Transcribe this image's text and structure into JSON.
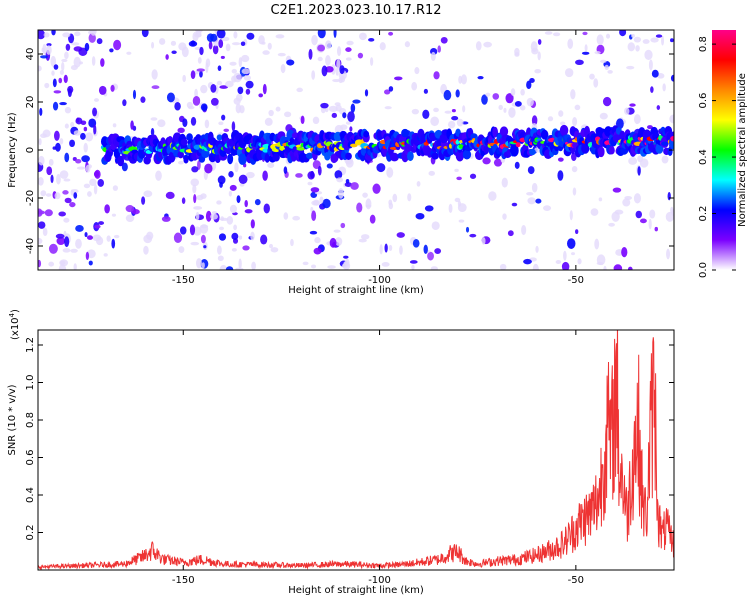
{
  "title": "C2E1.2023.023.10.17.R12",
  "colors": {
    "trace": "#ee3333",
    "axis": "#000000",
    "spectro_low": "#e6ddfa",
    "spectro_mid": "#7700ff"
  },
  "chart_data": [
    {
      "type": "heatmap",
      "xlabel": "Height of straight line (km)",
      "ylabel": "Frequency (Hz)",
      "xlim": [
        -187,
        -25
      ],
      "ylim": [
        -50,
        50
      ],
      "xticks": [
        -150,
        -100,
        -50
      ],
      "yticks": [
        -40,
        -20,
        0,
        20,
        40
      ],
      "grid": false,
      "colorbar": {
        "label": "Normalized spectral amplitude",
        "range": [
          0,
          0.85
        ],
        "ticks": [
          0.0,
          0.2,
          0.4,
          0.6,
          0.8
        ],
        "colormap": [
          "#ffffff",
          "#7b00ff",
          "#0000ff",
          "#00ffff",
          "#00ff00",
          "#ffff00",
          "#ff8800",
          "#ff0000",
          "#ff0088"
        ]
      },
      "features": [
        {
          "name": "band",
          "x_range": [
            -170,
            -25
          ],
          "freq_center_start": 0,
          "freq_center_end": 4,
          "peak_amplitude": 0.85
        },
        {
          "name": "noise",
          "x_range": [
            -187,
            -25
          ],
          "freq_range": [
            -50,
            50
          ],
          "amplitude": [
            0.0,
            0.25
          ]
        }
      ]
    },
    {
      "type": "line",
      "xlabel": "Height of straight line (km)",
      "ylabel": "SNR (10 * v/v)",
      "scale_label": "(x10",
      "scale_exp": "4",
      "scale_close": ")",
      "xlim": [
        -187,
        -25
      ],
      "ylim": [
        0,
        12800
      ],
      "xticks": [
        -150,
        -100,
        -50
      ],
      "yticks": [
        0.2,
        0.4,
        0.6,
        0.8,
        1.0,
        1.2
      ],
      "ytick_scale": 10000,
      "grid": false,
      "series": [
        {
          "color": "#ee3333",
          "x": [
            -187,
            -175,
            -165,
            -160,
            -158,
            -155,
            -150,
            -145,
            -140,
            -130,
            -120,
            -110,
            -100,
            -95,
            -90,
            -85,
            -82,
            -80,
            -78,
            -75,
            -70,
            -65,
            -60,
            -56,
            -53,
            -50,
            -48,
            -46,
            -44,
            -42,
            -41,
            -40,
            -39.5,
            -39,
            -38,
            -37,
            -36,
            -35,
            -34,
            -33,
            -32,
            -31,
            -30,
            -29,
            -28,
            -27,
            -26,
            -25
          ],
          "y": [
            200,
            300,
            400,
            900,
            1300,
            700,
            500,
            700,
            400,
            350,
            300,
            400,
            300,
            350,
            500,
            700,
            1100,
            1200,
            600,
            400,
            600,
            700,
            1000,
            1400,
            1800,
            2800,
            3400,
            3800,
            5000,
            9500,
            8000,
            11500,
            12800,
            7000,
            6000,
            3500,
            6000,
            8500,
            9300,
            4500,
            3500,
            8800,
            12000,
            3500,
            2200,
            2900,
            2200,
            1700
          ]
        }
      ]
    }
  ]
}
